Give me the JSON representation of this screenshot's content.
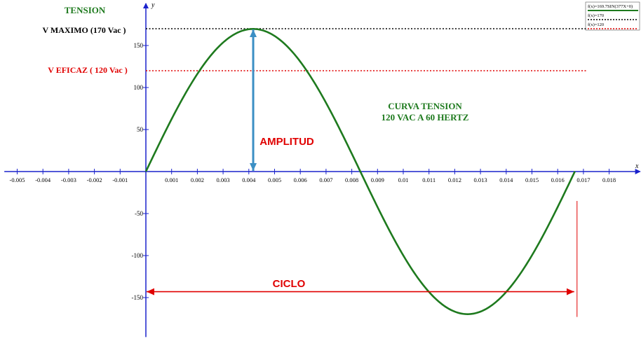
{
  "chart_data": {
    "type": "line",
    "title": "TENSION",
    "ylabel": "y",
    "xlabel": "x",
    "xlim": [
      -0.0055,
      0.0192
    ],
    "ylim": [
      -197,
      200
    ],
    "x_ticks": [
      -0.005,
      -0.004,
      -0.003,
      -0.002,
      -0.001,
      0.001,
      0.002,
      0.003,
      0.004,
      0.005,
      0.006,
      0.007,
      0.008,
      0.009,
      0.01,
      0.011,
      0.012,
      0.013,
      0.014,
      0.015,
      0.016,
      0.017,
      0.018
    ],
    "x_tick_labels": [
      "-0.005",
      "-0.004",
      "-0.003",
      "-0.002",
      "-0.001",
      "0.001",
      "0.002",
      "0.003",
      "0.004",
      "0.005",
      "0.006",
      "0.007",
      "0.008",
      "0.009",
      "0.01",
      "0.011",
      "0.012",
      "0.013",
      "0.014",
      "0.015",
      "0.016",
      "0.017",
      "0.018"
    ],
    "y_ticks": [
      -150,
      -100,
      -50,
      50,
      100,
      150
    ],
    "y_tick_labels": [
      "-150",
      "-100",
      "-50",
      "50",
      "100",
      "150"
    ],
    "series": [
      {
        "name": "f(x)=169.7SIN(377X+0)",
        "color": "#1e7a1e",
        "function": {
          "amplitude": 169.7,
          "omega": 377,
          "phase": 0
        },
        "x_range": [
          0,
          0.01667
        ]
      },
      {
        "name": "f(x)=170",
        "color": "#000000",
        "style": "dotted",
        "constant": 170,
        "x_range": [
          0,
          0.0171
        ]
      },
      {
        "name": "f(x)=120",
        "color": "#e00000",
        "style": "dotted",
        "constant": 120,
        "x_range": [
          0,
          0.0171
        ]
      }
    ],
    "legend_position": "top-right",
    "annotations": {
      "vmax_label": "V MAXIMO (170 Vac )",
      "vrms_label": "V EFICAZ ( 120 Vac )",
      "curve_title_line1": "CURVA TENSION",
      "curve_title_line2": "120 VAC A 60 HERTZ",
      "amplitude_label": "AMPLITUD",
      "cycle_label": "CICLO"
    },
    "amplitude_arrow": {
      "x": 0.00417,
      "from": 0,
      "to": 170
    },
    "cycle_arrow": {
      "y": -143,
      "from": 0,
      "to": 0.01667
    },
    "cycle_end_marker": {
      "x": 0.01667,
      "from": -35,
      "to": -173
    }
  },
  "colors": {
    "title_green": "#1e7a1e",
    "curve_green": "#1e7a1e",
    "axis_blue": "#1a22cc",
    "arrow_blue": "#3b8fc4",
    "annotation_red": "#e00000",
    "cycle_red": "#e00000"
  }
}
